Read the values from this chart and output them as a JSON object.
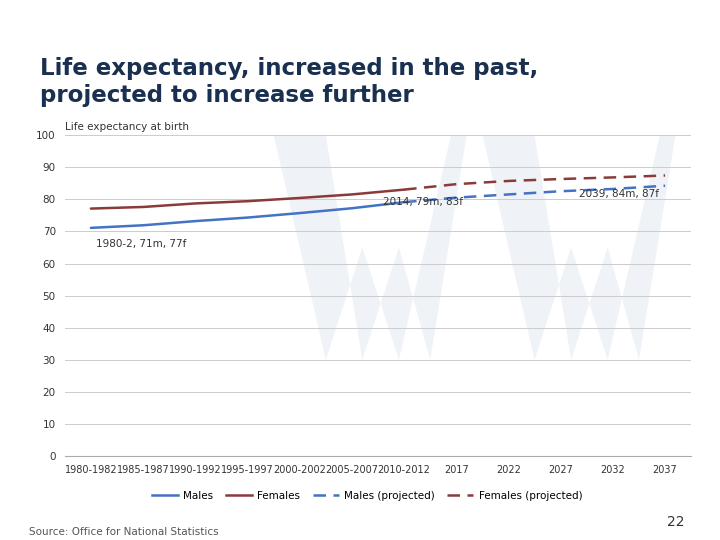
{
  "title_line1": "Life expectancy, increased in the past,",
  "title_line2": "projected to increase further",
  "ylabel": "Life expectancy at birth",
  "source": "Source: Office for National Statistics",
  "page_number": "22",
  "title_color": "#1a3050",
  "title_separator_color": "#8b7d2e",
  "background_color": "#ffffff",
  "male_color": "#4472c4",
  "female_color": "#8b3a3a",
  "ylim": [
    0,
    100
  ],
  "yticks": [
    0,
    10,
    20,
    30,
    40,
    50,
    60,
    70,
    80,
    90,
    100
  ],
  "xtick_labels": [
    "1980-1982",
    "1985-1987",
    "1990-1992",
    "1995-1997",
    "2000-2002",
    "2005-2007",
    "2010-2012",
    "2017",
    "2022",
    "2027",
    "2032",
    "2037"
  ],
  "males_historical": [
    71.1,
    71.9,
    73.2,
    74.3,
    75.7,
    77.2,
    79.1
  ],
  "females_historical": [
    77.1,
    77.6,
    78.7,
    79.4,
    80.4,
    81.5,
    83.0
  ],
  "males_projected": [
    79.1,
    80.5,
    81.5,
    82.5,
    83.2,
    84.2
  ],
  "females_projected": [
    83.0,
    84.7,
    85.7,
    86.3,
    86.8,
    87.4
  ],
  "annotation_1980": "1980-2, 71m, 77f",
  "annotation_2014": "2014, 79m, 83f",
  "annotation_2039": "2039, 84m, 87f",
  "watermark_color": "#dce4ef",
  "legend_labels": [
    "Males",
    "Females",
    "Males (projected)",
    "Females (projected)"
  ]
}
